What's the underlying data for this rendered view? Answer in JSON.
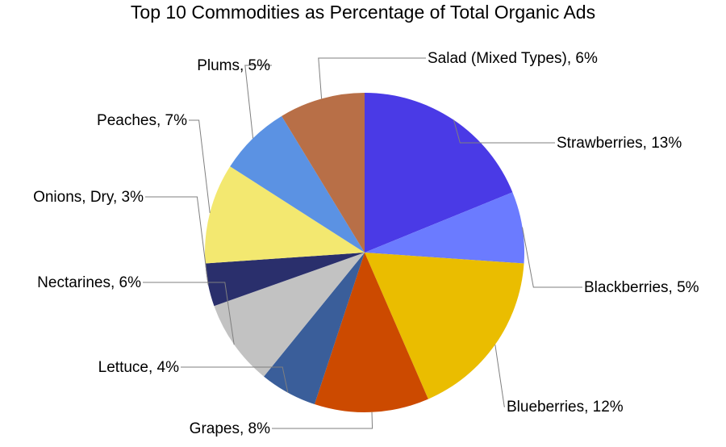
{
  "chart_data": {
    "type": "pie",
    "title": "Top 10 Commodities as Percentage of Total Organic Ads",
    "slices": [
      {
        "name": "Strawberries",
        "value": 13,
        "label": "Strawberries, 13%",
        "color": "#4a3ae6"
      },
      {
        "name": "Blackberries",
        "value": 5,
        "label": "Blackberries, 5%",
        "color": "#6b7bff"
      },
      {
        "name": "Blueberries",
        "value": 12,
        "label": "Blueberries, 12%",
        "color": "#eabd00"
      },
      {
        "name": "Grapes",
        "value": 8,
        "label": "Grapes, 8%",
        "color": "#cc4a00"
      },
      {
        "name": "Lettuce",
        "value": 4,
        "label": "Lettuce, 4%",
        "color": "#3a5e9a"
      },
      {
        "name": "Nectarines",
        "value": 6,
        "label": "Nectarines, 6%",
        "color": "#c2c2c2"
      },
      {
        "name": "Onions, Dry",
        "value": 3,
        "label": "Onions, Dry, 3%",
        "color": "#2a2f6c"
      },
      {
        "name": "Peaches",
        "value": 7,
        "label": "Peaches, 7%",
        "color": "#f3e870"
      },
      {
        "name": "Plums",
        "value": 5,
        "label": "Plums, 5%",
        "color": "#5b92e3"
      },
      {
        "name": "Salad (Mixed Types)",
        "value": 6,
        "label": "Salad (Mixed Types), 6%",
        "color": "#b86f47"
      }
    ]
  }
}
